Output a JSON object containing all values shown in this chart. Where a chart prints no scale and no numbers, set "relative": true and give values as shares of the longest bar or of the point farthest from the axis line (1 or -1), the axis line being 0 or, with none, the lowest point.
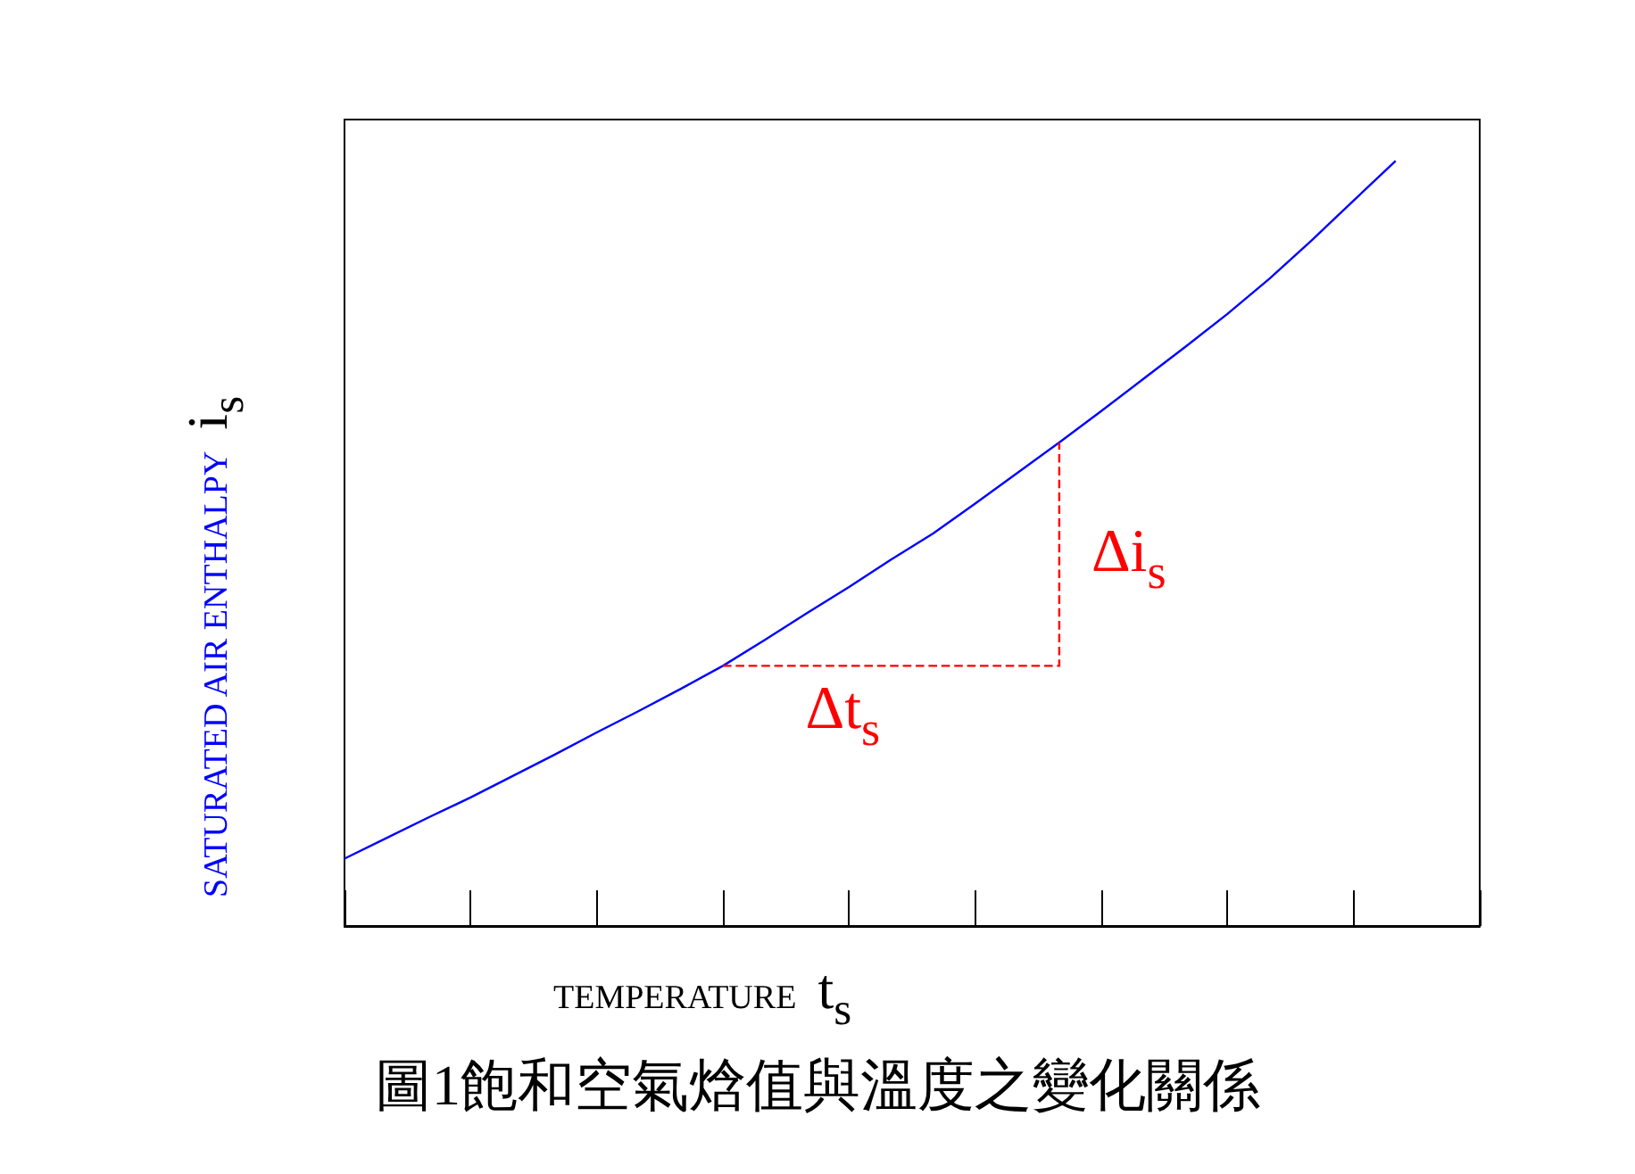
{
  "chart_data": {
    "type": "line",
    "relative": true,
    "title": "圖1飽和空氣焓值與溫度之變化關係",
    "xlabel": "TEMPERATURE t$_{s}$",
    "ylabel": "SATURATED AIR ENTHALPY i$_{s}$",
    "marker": "none",
    "categories": [
      null,
      null,
      null,
      null,
      null,
      null,
      null,
      null,
      null,
      null,
      null,
      null,
      null,
      null,
      null,
      null,
      null,
      null,
      null,
      null,
      null,
      null,
      null,
      null,
      null,
      null,
      null,
      null
    ],
    "series": [
      {
        "color": "#0000ff",
        "line_style": "solid",
        "values": [
          0.088,
          0.115,
          0.142,
          0.168,
          0.196,
          0.224,
          0.253,
          0.281,
          0.31,
          0.34,
          0.374,
          0.409,
          0.443,
          0.479,
          0.513,
          0.552,
          0.592,
          0.632,
          0.673,
          0.715,
          0.757,
          0.8,
          0.846,
          0.896,
          0.948,
          1,
          null,
          null
        ]
      },
      {
        "type": "step",
        "color": "#ff0000",
        "line_style": "dashed",
        "values": [
          null,
          null,
          null,
          null,
          null,
          null,
          null,
          null,
          null,
          0.34,
          0.34,
          0.34,
          0.34,
          0.34,
          0.34,
          0.34,
          0.34,
          0.632,
          null,
          null,
          null,
          null,
          null,
          null,
          null,
          null,
          null,
          null
        ]
      }
    ],
    "annotations": [
      "Δt$_{s}$",
      "Δi$_{s}$"
    ]
  }
}
